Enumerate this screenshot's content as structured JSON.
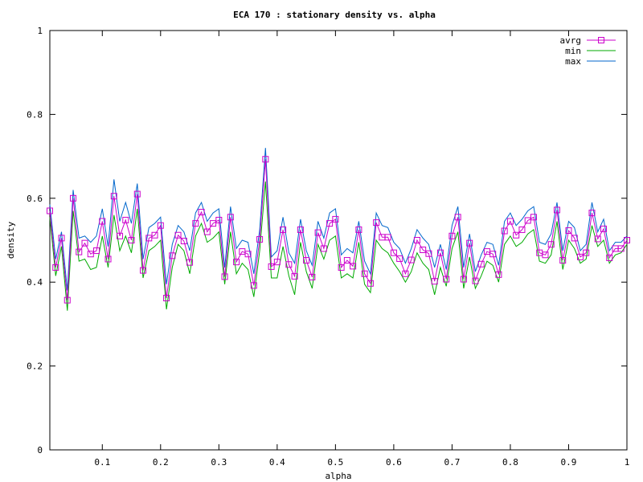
{
  "chart_data": {
    "type": "line",
    "title": "ECA 170 : stationary density vs. alpha",
    "xlabel": "alpha",
    "ylabel": "density",
    "xlim": [
      0.01,
      1.0
    ],
    "ylim": [
      0,
      1
    ],
    "xticks": [
      0.1,
      0.2,
      0.3,
      0.4,
      0.5,
      0.6,
      0.7,
      0.8,
      0.9,
      1
    ],
    "xtick_labels": [
      "0.1",
      "0.2",
      "0.3",
      "0.4",
      "0.5",
      "0.6",
      "0.7",
      "0.8",
      "0.9",
      "1"
    ],
    "yticks": [
      0,
      0.2,
      0.4,
      0.6,
      0.8,
      1
    ],
    "ytick_labels": [
      "0",
      "0.2",
      "0.4",
      "0.6",
      "0.8",
      "1"
    ],
    "grid": false,
    "legend_position": "top-right",
    "x": [
      0.01,
      0.02,
      0.03,
      0.04,
      0.05,
      0.06,
      0.07,
      0.08,
      0.09,
      0.1,
      0.11,
      0.12,
      0.13,
      0.14,
      0.15,
      0.16,
      0.17,
      0.18,
      0.19,
      0.2,
      0.21,
      0.22,
      0.23,
      0.24,
      0.25,
      0.26,
      0.27,
      0.28,
      0.29,
      0.3,
      0.31,
      0.32,
      0.33,
      0.34,
      0.35,
      0.36,
      0.37,
      0.38,
      0.39,
      0.4,
      0.41,
      0.42,
      0.43,
      0.44,
      0.45,
      0.46,
      0.47,
      0.48,
      0.49,
      0.5,
      0.51,
      0.52,
      0.53,
      0.54,
      0.55,
      0.56,
      0.57,
      0.58,
      0.59,
      0.6,
      0.61,
      0.62,
      0.63,
      0.64,
      0.65,
      0.66,
      0.67,
      0.68,
      0.69,
      0.7,
      0.71,
      0.72,
      0.73,
      0.74,
      0.75,
      0.76,
      0.77,
      0.78,
      0.79,
      0.8,
      0.81,
      0.82,
      0.83,
      0.84,
      0.85,
      0.86,
      0.87,
      0.88,
      0.89,
      0.9,
      0.91,
      0.92,
      0.93,
      0.94,
      0.95,
      0.96,
      0.97,
      0.98,
      0.99,
      1.0
    ],
    "series": [
      {
        "name": "avrg",
        "color": "#cc00cc",
        "marker": "square",
        "values": [
          0.57,
          0.435,
          0.505,
          0.357,
          0.6,
          0.472,
          0.493,
          0.467,
          0.475,
          0.545,
          0.455,
          0.605,
          0.51,
          0.548,
          0.5,
          0.61,
          0.428,
          0.505,
          0.512,
          0.535,
          0.362,
          0.463,
          0.512,
          0.498,
          0.447,
          0.54,
          0.567,
          0.52,
          0.54,
          0.548,
          0.413,
          0.555,
          0.448,
          0.473,
          0.467,
          0.392,
          0.502,
          0.693,
          0.437,
          0.448,
          0.525,
          0.442,
          0.414,
          0.525,
          0.452,
          0.412,
          0.518,
          0.48,
          0.54,
          0.55,
          0.435,
          0.452,
          0.438,
          0.525,
          0.42,
          0.397,
          0.542,
          0.507,
          0.507,
          0.47,
          0.456,
          0.42,
          0.453,
          0.5,
          0.477,
          0.468,
          0.402,
          0.47,
          0.407,
          0.51,
          0.555,
          0.407,
          0.493,
          0.403,
          0.443,
          0.473,
          0.467,
          0.418,
          0.522,
          0.545,
          0.512,
          0.525,
          0.547,
          0.555,
          0.47,
          0.465,
          0.49,
          0.572,
          0.452,
          0.523,
          0.505,
          0.46,
          0.47,
          0.565,
          0.503,
          0.527,
          0.458,
          0.48,
          0.48,
          0.5
        ]
      },
      {
        "name": "min",
        "color": "#00aa00",
        "values": [
          0.555,
          0.415,
          0.485,
          0.332,
          0.57,
          0.45,
          0.455,
          0.43,
          0.435,
          0.51,
          0.435,
          0.56,
          0.475,
          0.51,
          0.47,
          0.575,
          0.41,
          0.475,
          0.485,
          0.5,
          0.335,
          0.435,
          0.49,
          0.475,
          0.42,
          0.51,
          0.54,
          0.495,
          0.505,
          0.52,
          0.395,
          0.52,
          0.42,
          0.445,
          0.43,
          0.365,
          0.475,
          0.64,
          0.41,
          0.41,
          0.485,
          0.415,
          0.37,
          0.495,
          0.425,
          0.385,
          0.49,
          0.455,
          0.5,
          0.51,
          0.41,
          0.42,
          0.41,
          0.495,
          0.395,
          0.375,
          0.5,
          0.48,
          0.47,
          0.445,
          0.425,
          0.4,
          0.425,
          0.47,
          0.445,
          0.43,
          0.37,
          0.435,
          0.39,
          0.48,
          0.52,
          0.385,
          0.46,
          0.385,
          0.415,
          0.45,
          0.44,
          0.4,
          0.49,
          0.51,
          0.485,
          0.495,
          0.515,
          0.525,
          0.45,
          0.445,
          0.465,
          0.545,
          0.43,
          0.5,
          0.48,
          0.445,
          0.455,
          0.535,
          0.485,
          0.5,
          0.445,
          0.465,
          0.47,
          0.49
        ]
      },
      {
        "name": "max",
        "color": "#0066cc",
        "values": [
          0.585,
          0.455,
          0.52,
          0.38,
          0.62,
          0.505,
          0.51,
          0.495,
          0.51,
          0.575,
          0.485,
          0.645,
          0.545,
          0.59,
          0.54,
          0.635,
          0.455,
          0.53,
          0.54,
          0.555,
          0.395,
          0.49,
          0.535,
          0.52,
          0.475,
          0.565,
          0.59,
          0.545,
          0.565,
          0.575,
          0.435,
          0.58,
          0.48,
          0.5,
          0.495,
          0.42,
          0.525,
          0.72,
          0.46,
          0.475,
          0.555,
          0.47,
          0.445,
          0.55,
          0.475,
          0.44,
          0.545,
          0.505,
          0.565,
          0.575,
          0.465,
          0.48,
          0.47,
          0.545,
          0.45,
          0.42,
          0.565,
          0.535,
          0.53,
          0.495,
          0.48,
          0.445,
          0.48,
          0.525,
          0.505,
          0.49,
          0.435,
          0.49,
          0.43,
          0.535,
          0.58,
          0.435,
          0.515,
          0.425,
          0.465,
          0.495,
          0.49,
          0.44,
          0.545,
          0.565,
          0.535,
          0.55,
          0.57,
          0.58,
          0.495,
          0.49,
          0.515,
          0.59,
          0.475,
          0.545,
          0.53,
          0.475,
          0.49,
          0.59,
          0.52,
          0.55,
          0.475,
          0.495,
          0.495,
          0.51
        ]
      }
    ]
  }
}
